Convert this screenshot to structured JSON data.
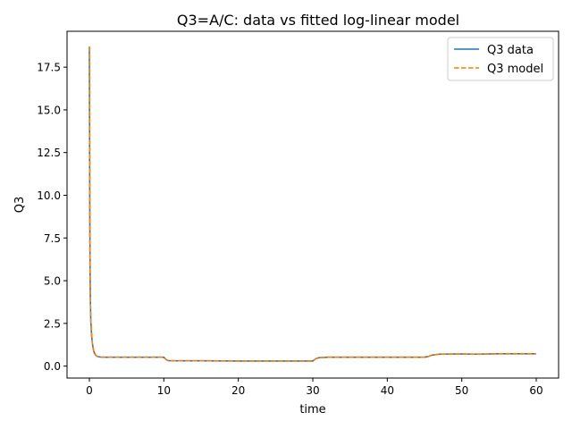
{
  "chart_data": {
    "type": "line",
    "title": "Q3=A/C: data vs fitted log-linear model",
    "xlabel": "time",
    "ylabel": "Q3",
    "xlim": [
      -3,
      63
    ],
    "ylim": [
      -0.7,
      19.6
    ],
    "xticks": [
      0,
      10,
      20,
      30,
      40,
      50,
      60
    ],
    "xtick_labels": [
      "0",
      "10",
      "20",
      "30",
      "40",
      "50",
      "60"
    ],
    "yticks": [
      0.0,
      2.5,
      5.0,
      7.5,
      10.0,
      12.5,
      15.0,
      17.5
    ],
    "ytick_labels": [
      "0.0",
      "2.5",
      "5.0",
      "7.5",
      "10.0",
      "12.5",
      "15.0",
      "17.5"
    ],
    "grid": false,
    "legend_position": "top-right",
    "series": [
      {
        "name": "Q3 data",
        "color": "#1f77b4",
        "style": "solid",
        "x": [
          0.0,
          0.05,
          0.1,
          0.15,
          0.2,
          0.3,
          0.4,
          0.5,
          0.6,
          0.7,
          0.8,
          0.9,
          1.0,
          1.2,
          1.5,
          2.0,
          3,
          5,
          8,
          10,
          10.3,
          10.6,
          12,
          15,
          20,
          25,
          29.5,
          30.0,
          30.4,
          30.8,
          32,
          35,
          40,
          45,
          45.5,
          46,
          47,
          50,
          52,
          55,
          58,
          60
        ],
        "y": [
          18.7,
          9.5,
          5.3,
          3.5,
          2.6,
          1.8,
          1.35,
          1.05,
          0.85,
          0.75,
          0.67,
          0.62,
          0.58,
          0.55,
          0.53,
          0.52,
          0.52,
          0.52,
          0.52,
          0.52,
          0.38,
          0.32,
          0.31,
          0.31,
          0.3,
          0.3,
          0.3,
          0.3,
          0.43,
          0.49,
          0.52,
          0.52,
          0.52,
          0.52,
          0.56,
          0.64,
          0.7,
          0.71,
          0.7,
          0.72,
          0.72,
          0.72
        ]
      },
      {
        "name": "Q3 model",
        "color": "#ff7f0e",
        "style": "dashed",
        "x": [
          0.0,
          0.05,
          0.1,
          0.15,
          0.2,
          0.3,
          0.4,
          0.5,
          0.6,
          0.7,
          0.8,
          0.9,
          1.0,
          1.2,
          1.5,
          2.0,
          3,
          5,
          8,
          10,
          10.3,
          10.6,
          12,
          15,
          20,
          25,
          29.5,
          30.0,
          30.4,
          30.8,
          32,
          35,
          40,
          45,
          45.5,
          46,
          47,
          50,
          52,
          55,
          58,
          60
        ],
        "y": [
          18.7,
          9.5,
          5.3,
          3.5,
          2.6,
          1.8,
          1.35,
          1.05,
          0.85,
          0.75,
          0.67,
          0.62,
          0.58,
          0.55,
          0.53,
          0.52,
          0.52,
          0.52,
          0.52,
          0.52,
          0.38,
          0.32,
          0.31,
          0.31,
          0.3,
          0.3,
          0.3,
          0.3,
          0.43,
          0.49,
          0.52,
          0.52,
          0.52,
          0.52,
          0.56,
          0.64,
          0.7,
          0.71,
          0.7,
          0.72,
          0.72,
          0.72
        ]
      }
    ]
  }
}
